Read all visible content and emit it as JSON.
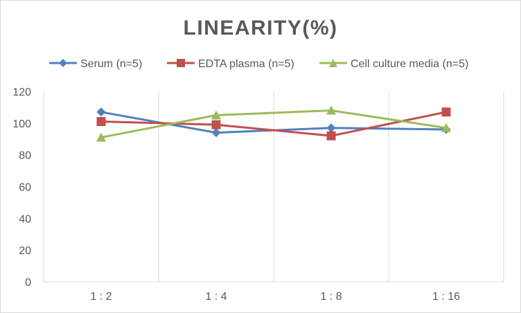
{
  "chart_data": {
    "type": "line",
    "title": "LINEARITY(%)",
    "xlabel": "",
    "ylabel": "",
    "categories": [
      "1 : 2",
      "1 : 4",
      "1 : 8",
      "1 : 16"
    ],
    "ylim": [
      0,
      120
    ],
    "yticks": [
      0,
      20,
      40,
      60,
      80,
      100,
      120
    ],
    "y_gridlines": false,
    "x_category_separators": true,
    "legend_position": "top",
    "series": [
      {
        "name": "Serum (n=5)",
        "values": [
          107,
          94,
          97,
          96
        ],
        "color": "#4f81bd",
        "marker": "diamond"
      },
      {
        "name": "EDTA plasma (n=5)",
        "values": [
          101,
          99,
          92,
          107
        ],
        "color": "#c0504d",
        "marker": "square"
      },
      {
        "name": "Cell culture media (n=5)",
        "values": [
          91,
          105,
          108,
          97
        ],
        "color": "#9bbb59",
        "marker": "triangle"
      }
    ]
  }
}
